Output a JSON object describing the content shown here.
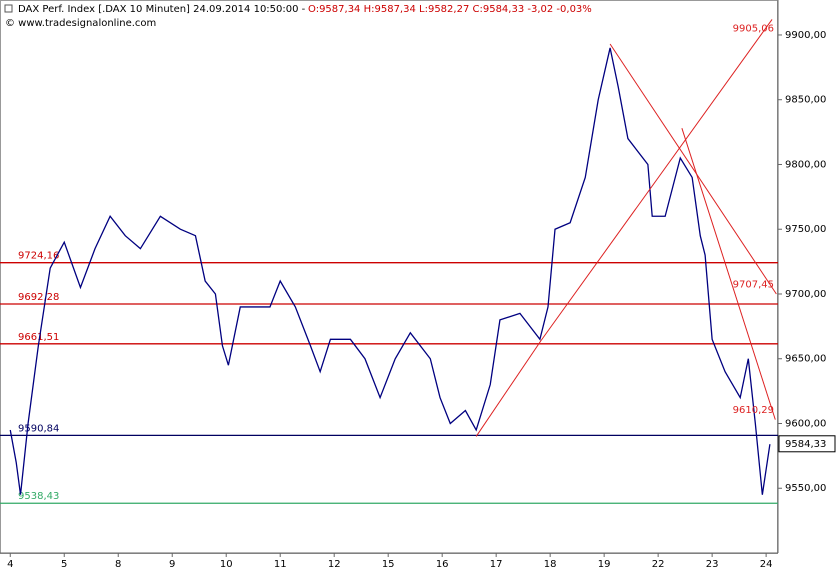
{
  "chart_data": {
    "type": "line",
    "title": "DAX Perf. Index [.DAX 10 Minuten] 24.09.2014 10:50:00 -",
    "quote": "O:9587,34 H:9587,34 L:9582,27 C:9584,33 -3,02 -0,03%",
    "source": "© www.tradesignalonline.com",
    "x": [
      0,
      0.11,
      0.19,
      0.33,
      0.52,
      0.74,
      1,
      1.3,
      1.57,
      1.85,
      2.13,
      2.41,
      2.78,
      3.15,
      3.43,
      3.61,
      3.8,
      3.93,
      4.04,
      4.26,
      4.54,
      4.81,
      5,
      5.28,
      5.56,
      5.74,
      5.93,
      6.3,
      6.57,
      6.85,
      7.13,
      7.41,
      7.78,
      7.96,
      8.15,
      8.43,
      8.63,
      8.89,
      9.07,
      9.44,
      9.81,
      9.96,
      10.09,
      10.37,
      10.65,
      10.89,
      11.11,
      11.26,
      11.44,
      11.81,
      11.89,
      12.13,
      12.41,
      12.63,
      12.78,
      12.87,
      12.93,
      13,
      13.24,
      13.52,
      13.67,
      13.8,
      13.93,
      14.07
    ],
    "series": [
      {
        "color": "#000080",
        "values": [
          9595,
          9570,
          9545,
          9600,
          9660,
          9720,
          9740,
          9705,
          9735,
          9760,
          9745,
          9735,
          9760,
          9750,
          9745,
          9710,
          9700,
          9660,
          9645,
          9690,
          9690,
          9690,
          9710,
          9690,
          9660,
          9640,
          9665,
          9665,
          9650,
          9620,
          9650,
          9670,
          9650,
          9620,
          9600,
          9610,
          9595,
          9630,
          9680,
          9685,
          9665,
          9690,
          9750,
          9755,
          9790,
          9850,
          9890,
          9860,
          9820,
          9800,
          9760,
          9760,
          9805,
          9790,
          9745,
          9730,
          9700,
          9665,
          9640,
          9620,
          9650,
          9600,
          9545,
          9584
        ]
      }
    ],
    "xlim": [
      -0.19,
      14.22
    ],
    "xticks": [
      {
        "value": 0,
        "label": "4"
      },
      {
        "value": 1,
        "label": "5"
      },
      {
        "value": 2,
        "label": "8"
      },
      {
        "value": 3,
        "label": "9"
      },
      {
        "value": 4,
        "label": "10"
      },
      {
        "value": 5,
        "label": "11"
      },
      {
        "value": 6,
        "label": "12"
      },
      {
        "value": 7,
        "label": "15"
      },
      {
        "value": 8,
        "label": "16"
      },
      {
        "value": 9,
        "label": "17"
      },
      {
        "value": 10,
        "label": "18"
      },
      {
        "value": 11,
        "label": "19"
      },
      {
        "value": 12,
        "label": "22"
      },
      {
        "value": 13,
        "label": "23"
      },
      {
        "value": 14,
        "label": "24"
      }
    ],
    "ylim": [
      9500,
      9927
    ],
    "yticks": [
      {
        "value": 9550,
        "label": "9550,00"
      },
      {
        "value": 9600,
        "label": "9600,00"
      },
      {
        "value": 9650,
        "label": "9650,00"
      },
      {
        "value": 9700,
        "label": "9700,00"
      },
      {
        "value": 9750,
        "label": "9750,00"
      },
      {
        "value": 9800,
        "label": "9800,00"
      },
      {
        "value": 9850,
        "label": "9850,00"
      },
      {
        "value": 9900,
        "label": "9900,00"
      }
    ],
    "last": {
      "value": 9584.33,
      "label": "9584,33"
    },
    "levels": [
      {
        "value": 9724.16,
        "label": "9724,16",
        "color": "#cc0000"
      },
      {
        "value": 9692.28,
        "label": "9692,28",
        "color": "#cc0000"
      },
      {
        "value": 9661.51,
        "label": "9661,51",
        "color": "#cc0000"
      },
      {
        "value": 9590.84,
        "label": "9590,84",
        "color": "#000060"
      },
      {
        "value": 9538.43,
        "label": "9538,43",
        "color": "#33aa66"
      }
    ],
    "trendlines": [
      {
        "x": [
          8.63,
          9.83
        ],
        "y": [
          9590,
          9664
        ]
      },
      {
        "x": [
          9.83,
          14.11
        ],
        "y": [
          9664,
          9912
        ],
        "tag": {
          "value": 9905.06,
          "label": "9905,06"
        }
      },
      {
        "x": [
          11.11,
          14.19
        ],
        "y": [
          9893,
          9700
        ],
        "tag": {
          "value": 9707.45,
          "label": "9707,45"
        }
      },
      {
        "x": [
          12.44,
          14.17
        ],
        "y": [
          9828,
          9603
        ],
        "tag": {
          "value": 9610.29,
          "label": "9610,29"
        }
      }
    ],
    "trend_color": "#dd2222"
  }
}
